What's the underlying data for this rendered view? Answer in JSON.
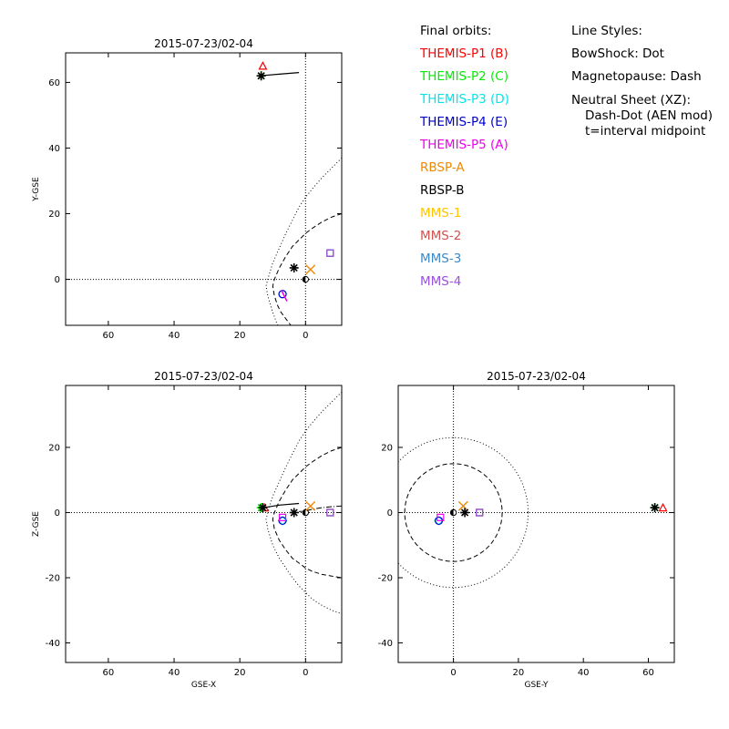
{
  "legend": {
    "orbits_title": "Final orbits:",
    "spacecraft": [
      {
        "label": "THEMIS-P1 (B)",
        "color": "#ff0000"
      },
      {
        "label": "THEMIS-P2 (C)",
        "color": "#00ee00"
      },
      {
        "label": "THEMIS-P3 (D)",
        "color": "#00e5ee"
      },
      {
        "label": "THEMIS-P4 (E)",
        "color": "#0000cd"
      },
      {
        "label": "THEMIS-P5 (A)",
        "color": "#ee00ee"
      },
      {
        "label": "RBSP-A",
        "color": "#ee8800"
      },
      {
        "label": "RBSP-B",
        "color": "#000000"
      },
      {
        "label": "MMS-1",
        "color": "#ffc400"
      },
      {
        "label": "MMS-2",
        "color": "#d0524e"
      },
      {
        "label": "MMS-3",
        "color": "#3d88c8"
      },
      {
        "label": "MMS-4",
        "color": "#9a4fe0"
      }
    ],
    "styles_title": "Line Styles:",
    "bowshock": "BowShock: Dot",
    "magnetopause": "Magnetopause: Dash",
    "neutral_sheet_1": "Neutral Sheet (XZ):",
    "neutral_sheet_2": "Dash-Dot (AEN mod)",
    "midpoint_note": "t=interval midpoint"
  },
  "chart_data": [
    {
      "type": "scatter",
      "title": "2015-07-23/02-04",
      "xlabel": "",
      "ylabel": "Y-GSE",
      "xlim": [
        73,
        -11
      ],
      "ylim": [
        -14,
        69
      ],
      "xticks": [
        60,
        40,
        20,
        0
      ],
      "yticks": [
        0,
        20,
        40,
        60
      ],
      "boundaries": {
        "bowshock": [
          [
            -11,
            37
          ],
          [
            -8,
            34
          ],
          [
            -5,
            31
          ],
          [
            -2,
            27.5
          ],
          [
            0,
            25
          ],
          [
            2,
            22
          ],
          [
            4,
            18
          ],
          [
            6,
            14
          ],
          [
            8,
            9.5
          ],
          [
            10,
            5
          ],
          [
            11.5,
            0
          ],
          [
            12,
            -2
          ],
          [
            11.5,
            -5
          ],
          [
            10,
            -10
          ],
          [
            8.5,
            -14
          ]
        ],
        "magnetopause": [
          [
            -11,
            20
          ],
          [
            -8,
            19
          ],
          [
            -5,
            17.5
          ],
          [
            -2,
            15.5
          ],
          [
            0,
            14
          ],
          [
            2,
            12
          ],
          [
            4,
            10
          ],
          [
            6,
            7
          ],
          [
            8,
            3.5
          ],
          [
            9.5,
            0
          ],
          [
            10,
            -2
          ],
          [
            9.5,
            -5
          ],
          [
            8.5,
            -8
          ],
          [
            7.5,
            -10
          ],
          [
            6,
            -12
          ],
          [
            4.5,
            -14
          ]
        ]
      },
      "trajectory": [
        [
          14,
          62
        ],
        [
          8,
          62.5
        ],
        [
          2,
          63
        ]
      ],
      "points": [
        {
          "sc": "THEMIS-P1 (B)",
          "x": 13,
          "y": 65,
          "marker": "triangle"
        },
        {
          "sc": "THEMIS-P2 (C)",
          "x": 13.5,
          "y": 62,
          "marker": "asterisk"
        },
        {
          "sc": "RBSP-B",
          "x": 13.5,
          "y": 62,
          "marker": "asterisk"
        },
        {
          "sc": "THEMIS-P3 (D)",
          "x": 7,
          "y": -4.5,
          "marker": "circle"
        },
        {
          "sc": "THEMIS-P4 (E)",
          "x": 7,
          "y": -4.5,
          "marker": "circle"
        },
        {
          "sc": "THEMIS-P5 (A)",
          "x": 6.5,
          "y": -5,
          "marker": "line"
        },
        {
          "sc": "RBSP-A",
          "x": -1.5,
          "y": 3,
          "marker": "x"
        },
        {
          "sc": "RBSP-B",
          "x": 3.5,
          "y": 3.5,
          "marker": "asterisk"
        },
        {
          "sc": "MMS-1",
          "x": -7.5,
          "y": 8,
          "marker": "square"
        },
        {
          "sc": "MMS-2",
          "x": -7.5,
          "y": 8,
          "marker": "square"
        },
        {
          "sc": "MMS-3",
          "x": -7.5,
          "y": 8,
          "marker": "square"
        },
        {
          "sc": "MMS-4",
          "x": -7.5,
          "y": 8,
          "marker": "square"
        }
      ]
    },
    {
      "type": "scatter",
      "title": "2015-07-23/02-04",
      "xlabel": "GSE-X",
      "ylabel": "Z-GSE",
      "xlim": [
        73,
        -11
      ],
      "ylim": [
        -46,
        39
      ],
      "xticks": [
        60,
        40,
        20,
        0
      ],
      "yticks": [
        -40,
        -20,
        0,
        20
      ],
      "boundaries": {
        "bowshock": [
          [
            -11,
            37
          ],
          [
            -8,
            34
          ],
          [
            -5,
            31
          ],
          [
            -2,
            27.5
          ],
          [
            0,
            25
          ],
          [
            2,
            22
          ],
          [
            4,
            18
          ],
          [
            6,
            14
          ],
          [
            8,
            9.5
          ],
          [
            10,
            5
          ],
          [
            11.5,
            0
          ],
          [
            12,
            -2
          ],
          [
            11.5,
            -5
          ],
          [
            10,
            -10
          ],
          [
            8,
            -14
          ],
          [
            6,
            -17
          ],
          [
            4,
            -20
          ],
          [
            2,
            -22.5
          ],
          [
            0,
            -24.5
          ],
          [
            -2,
            -26.5
          ],
          [
            -5,
            -28.5
          ],
          [
            -8,
            -30
          ],
          [
            -11,
            -31
          ]
        ],
        "magnetopause": [
          [
            -11,
            20
          ],
          [
            -8,
            19
          ],
          [
            -5,
            17.5
          ],
          [
            -2,
            15.5
          ],
          [
            0,
            14
          ],
          [
            2,
            12
          ],
          [
            4,
            10
          ],
          [
            6,
            7
          ],
          [
            8,
            3.5
          ],
          [
            9.5,
            0
          ],
          [
            10,
            -2
          ],
          [
            9.5,
            -5
          ],
          [
            8,
            -8.5
          ],
          [
            6,
            -11.5
          ],
          [
            4,
            -14
          ],
          [
            2,
            -15.5
          ],
          [
            0,
            -17
          ],
          [
            -2,
            -18
          ],
          [
            -5,
            -19
          ],
          [
            -8,
            -19.5
          ],
          [
            -11,
            -20
          ]
        ],
        "neutral_sheet": [
          [
            -11,
            2
          ],
          [
            -8,
            1.8
          ],
          [
            -5,
            1.5
          ],
          [
            -2,
            1
          ],
          [
            0,
            0.5
          ],
          [
            2,
            0.3
          ]
        ]
      },
      "trajectory": [
        [
          14,
          1.3
        ],
        [
          8,
          2.3
        ],
        [
          2,
          2.8
        ]
      ],
      "points": [
        {
          "sc": "THEMIS-P1 (B)",
          "x": 12.5,
          "y": 1.5,
          "marker": "triangle"
        },
        {
          "sc": "THEMIS-P2 (C)",
          "x": 13.5,
          "y": 1.5,
          "marker": "asterisk"
        },
        {
          "sc": "RBSP-B",
          "x": 13,
          "y": 1.5,
          "marker": "asterisk"
        },
        {
          "sc": "THEMIS-P3 (D)",
          "x": 7,
          "y": -2.5,
          "marker": "diamond"
        },
        {
          "sc": "THEMIS-P4 (E)",
          "x": 7,
          "y": -2.5,
          "marker": "circle"
        },
        {
          "sc": "THEMIS-P5 (A)",
          "x": 7,
          "y": -1.5,
          "marker": "square"
        },
        {
          "sc": "RBSP-A",
          "x": -1.5,
          "y": 2,
          "marker": "x"
        },
        {
          "sc": "RBSP-B",
          "x": 3.5,
          "y": 0,
          "marker": "asterisk"
        },
        {
          "sc": "MMS-1",
          "x": -7.5,
          "y": 0,
          "marker": "square"
        },
        {
          "sc": "MMS-2",
          "x": -7.5,
          "y": 0,
          "marker": "square"
        },
        {
          "sc": "MMS-3",
          "x": -7.5,
          "y": 0,
          "marker": "square"
        },
        {
          "sc": "MMS-4",
          "x": -7.5,
          "y": 0,
          "marker": "square"
        }
      ]
    },
    {
      "type": "scatter",
      "title": "2015-07-23/02-04",
      "xlabel": "GSE-Y",
      "ylabel": "",
      "xlim": [
        -17,
        68
      ],
      "ylim": [
        -46,
        39
      ],
      "xticks": [
        0,
        20,
        40,
        60
      ],
      "yticks": [
        -40,
        -20,
        0,
        20
      ],
      "boundaries": {
        "bowshock_radius": 23,
        "magnetopause_radius": 15
      },
      "trajectory": [],
      "points": [
        {
          "sc": "THEMIS-P1 (B)",
          "x": 64.5,
          "y": 1.5,
          "marker": "triangle"
        },
        {
          "sc": "THEMIS-P2 (C)",
          "x": 62,
          "y": 1.5,
          "marker": "asterisk"
        },
        {
          "sc": "RBSP-B",
          "x": 62,
          "y": 1.5,
          "marker": "asterisk"
        },
        {
          "sc": "THEMIS-P3 (D)",
          "x": -4.5,
          "y": -2.5,
          "marker": "diamond"
        },
        {
          "sc": "THEMIS-P4 (E)",
          "x": -4.5,
          "y": -2.5,
          "marker": "circle"
        },
        {
          "sc": "THEMIS-P5 (A)",
          "x": -4,
          "y": -1.5,
          "marker": "square"
        },
        {
          "sc": "RBSP-A",
          "x": 3,
          "y": 2,
          "marker": "x"
        },
        {
          "sc": "RBSP-B",
          "x": 3.5,
          "y": 0,
          "marker": "asterisk"
        },
        {
          "sc": "MMS-1",
          "x": 8,
          "y": 0,
          "marker": "square"
        },
        {
          "sc": "MMS-2",
          "x": 8,
          "y": 0,
          "marker": "square"
        },
        {
          "sc": "MMS-3",
          "x": 8,
          "y": 0,
          "marker": "square"
        },
        {
          "sc": "MMS-4",
          "x": 8,
          "y": 0,
          "marker": "square"
        }
      ]
    }
  ]
}
